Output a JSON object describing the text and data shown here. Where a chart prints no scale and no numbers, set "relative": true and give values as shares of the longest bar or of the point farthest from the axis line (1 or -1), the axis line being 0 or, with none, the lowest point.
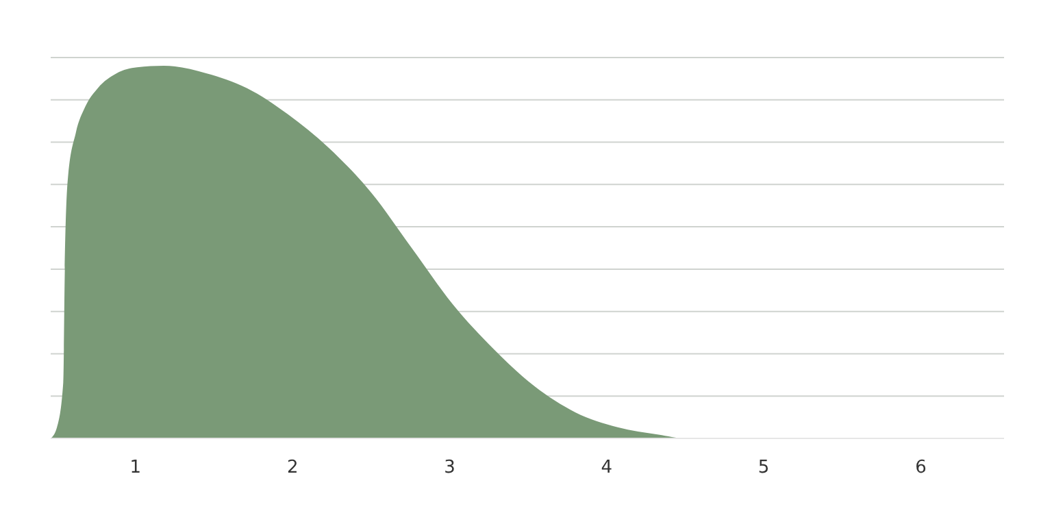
{
  "chart_data": {
    "type": "area",
    "relative": true,
    "grid": "y",
    "xlim": [
      0.46,
      6.53
    ],
    "xticks": [
      1,
      2,
      3,
      4,
      5,
      6
    ],
    "x": [
      0.46,
      0.5,
      0.54,
      0.55,
      0.57,
      0.62,
      0.68,
      0.76,
      0.88,
      1.01,
      1.18,
      1.45,
      1.71,
      1.97,
      2.23,
      2.5,
      2.76,
      3.02,
      3.28,
      3.54,
      3.8,
      4.07,
      4.33,
      4.5,
      6.53
    ],
    "series": [
      {
        "color": "#7a9a77",
        "values": [
          0,
          0.03,
          0.15,
          0.45,
          0.7,
          0.82,
          0.89,
          0.94,
          0.98,
          0.996,
          1,
          0.98,
          0.94,
          0.87,
          0.78,
          0.66,
          0.51,
          0.36,
          0.24,
          0.14,
          0.07,
          0.03,
          0.01,
          0,
          0
        ]
      }
    ]
  }
}
